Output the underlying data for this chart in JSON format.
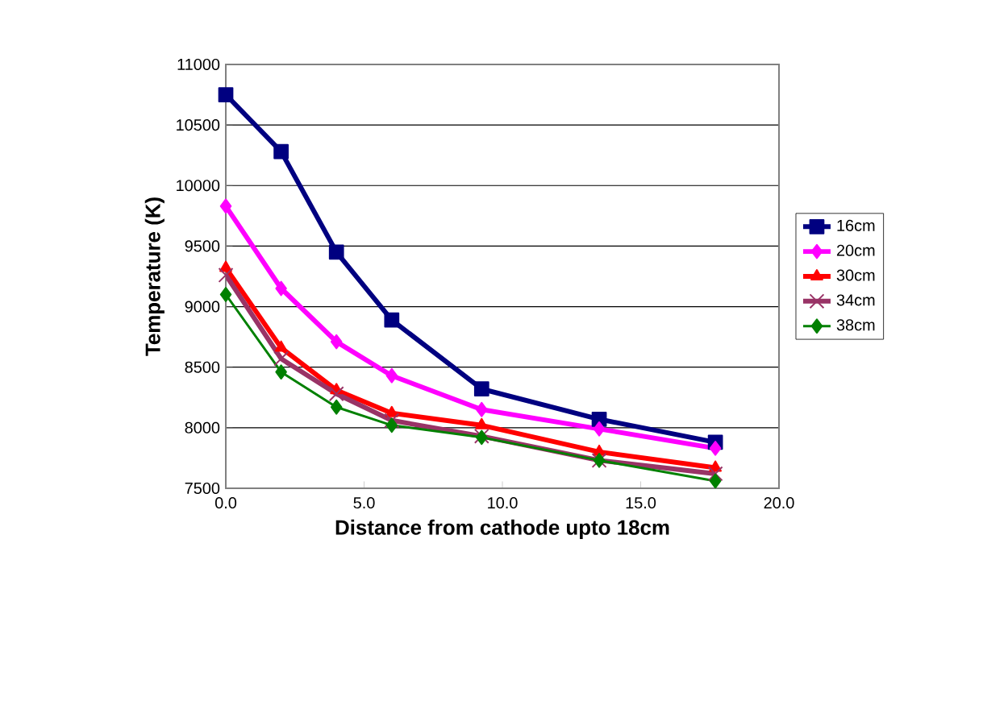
{
  "chart_data": {
    "type": "line",
    "xlabel": "Distance from cathode upto 18cm",
    "ylabel": "Temperature (K)",
    "x": [
      0,
      2.0,
      4.0,
      6.0,
      9.25,
      13.5,
      17.7
    ],
    "series": [
      {
        "name": "16cm",
        "color": "#000080",
        "marker": "square",
        "values": [
          10750,
          10280,
          9450,
          8890,
          8320,
          8070,
          7880
        ]
      },
      {
        "name": "20cm",
        "color": "#ff00ff",
        "marker": "diamond",
        "values": [
          9830,
          9150,
          8710,
          8430,
          8150,
          7990,
          7830
        ]
      },
      {
        "name": "30cm",
        "color": "#ff0000",
        "marker": "triangle",
        "values": [
          9320,
          8660,
          8310,
          8120,
          8020,
          7800,
          7670
        ]
      },
      {
        "name": "34cm",
        "color": "#993366",
        "marker": "cross",
        "values": [
          9260,
          8570,
          8280,
          8060,
          7930,
          7730,
          7620
        ]
      },
      {
        "name": "38cm",
        "color": "#008000",
        "marker": "diamond",
        "values": [
          9100,
          8460,
          8170,
          8020,
          7920,
          7730,
          7560
        ]
      }
    ],
    "xlim": [
      0,
      20
    ],
    "ylim": [
      7500,
      11000
    ],
    "xticks": [
      {
        "value": 0,
        "label": "0.0"
      },
      {
        "value": 5,
        "label": "5.0"
      },
      {
        "value": 10,
        "label": "10.0"
      },
      {
        "value": 15,
        "label": "15.0"
      },
      {
        "value": 20,
        "label": "20.0"
      }
    ],
    "yticks": [
      7500,
      8000,
      8500,
      9000,
      9500,
      10000,
      10500,
      11000
    ],
    "grid": "y",
    "legend": "right",
    "line_style": "solid"
  }
}
